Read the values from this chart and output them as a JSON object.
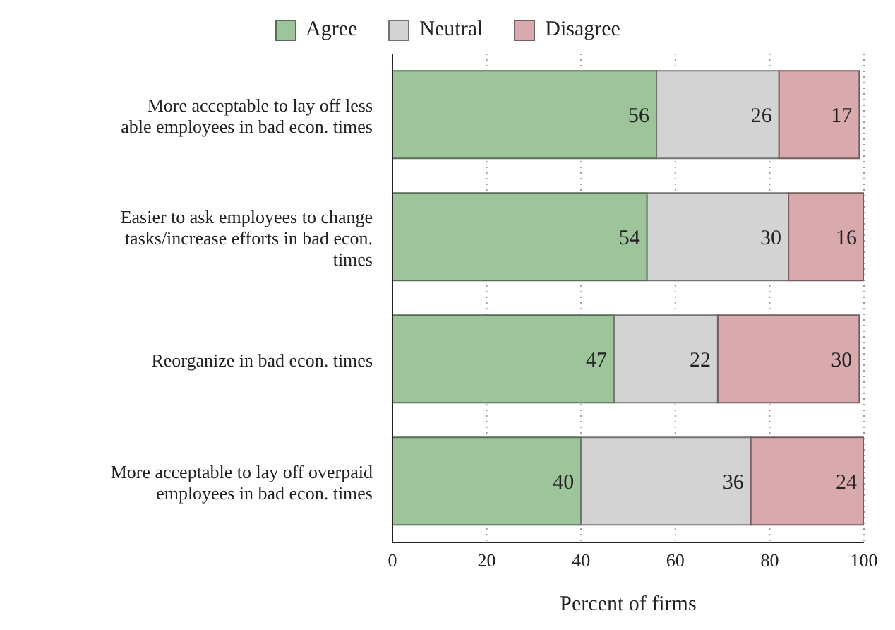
{
  "chart_data": {
    "type": "bar",
    "orientation": "horizontal",
    "stacked": true,
    "xlabel": "Percent of firms",
    "categories": [
      "More acceptable to lay off less able employees in bad econ. times",
      "Easier to ask employees to change tasks/increase efforts in bad econ. times",
      "Reorganize in bad econ. times",
      "More acceptable to lay off overpaid employees in bad econ. times"
    ],
    "series": [
      {
        "name": "Agree",
        "color": "#9dc49a",
        "values": [
          56,
          54,
          47,
          40
        ]
      },
      {
        "name": "Neutral",
        "color": "#d3d3d3",
        "values": [
          26,
          30,
          22,
          36
        ]
      },
      {
        "name": "Disagree",
        "color": "#d8a9ad",
        "values": [
          17,
          16,
          30,
          24
        ]
      }
    ],
    "xlim": [
      0,
      100
    ],
    "xticks": [
      0,
      20,
      40,
      60,
      80,
      100
    ],
    "grid": "x",
    "legend": "top",
    "data_labels": true
  }
}
